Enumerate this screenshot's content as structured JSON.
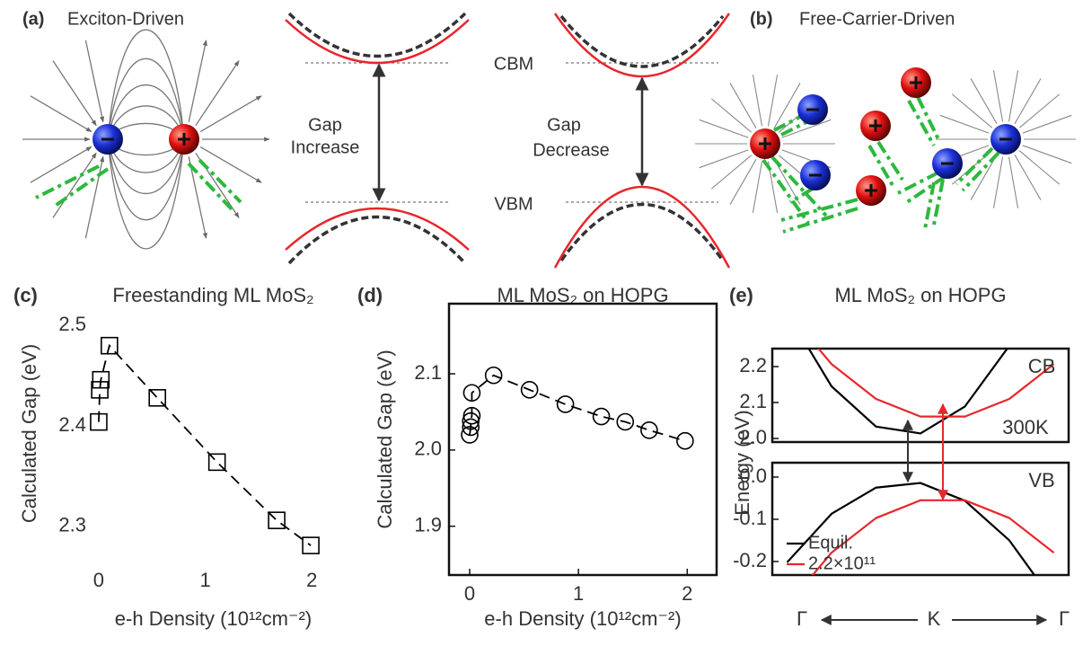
{
  "panel_a": {
    "label": "(a)",
    "title": "Exciton-Driven",
    "gap_text": [
      "Gap",
      "Increase"
    ],
    "cbm": "CBM",
    "vbm": "VBM"
  },
  "panel_b": {
    "label": "(b)",
    "title": "Free-Carrier-Driven",
    "gap_text": [
      "Gap",
      "Decrease"
    ]
  },
  "chart_data": [
    {
      "type": "line",
      "panel_label": "(c)",
      "title": "Freestanding ML MoS₂",
      "xlabel": "e-h Density (10¹²cm⁻²)",
      "ylabel": "Calculated Gap (eV)",
      "x": [
        0,
        0.01,
        0.02,
        0.1,
        0.55,
        1.11,
        1.67,
        1.99
      ],
      "values": [
        2.404,
        2.436,
        2.446,
        2.48,
        2.428,
        2.364,
        2.306,
        2.281
      ],
      "color": "#000000",
      "marker": "square",
      "linestyle": "dashed",
      "frame": false,
      "xlim": [
        -0.05,
        2.2
      ],
      "xticks": [
        0,
        1,
        2
      ],
      "ylim": [
        2.265,
        2.52
      ],
      "yticks": [
        2.3,
        2.4,
        2.5
      ]
    },
    {
      "type": "line",
      "panel_label": "(d)",
      "title": "ML MoS₂ on HOPG",
      "xlabel": "e-h Density (10¹²cm⁻²)",
      "ylabel": "Calculated Gap (eV)",
      "x": [
        0,
        0.01,
        0.01,
        0.02,
        0.02,
        0.22,
        0.55,
        0.88,
        1.21,
        1.43,
        1.65,
        1.98
      ],
      "values": [
        2.02,
        2.03,
        2.038,
        2.045,
        2.075,
        2.098,
        2.079,
        2.06,
        2.044,
        2.037,
        2.026,
        2.012
      ],
      "color": "#000000",
      "marker": "circle",
      "linestyle": "dashed",
      "frame": true,
      "xlim": [
        -0.19,
        2.27
      ],
      "xticks": [
        0,
        1,
        2
      ],
      "ylim": [
        1.836,
        2.192
      ],
      "yticks": [
        1.9,
        {
          "value": 2,
          "label": "2.0"
        },
        2.1
      ]
    },
    {
      "type": "band",
      "panel_label": "(e)",
      "title": "ML MoS₂ on HOPG",
      "ylabel": "Energy (eV)",
      "x_labels": [
        "Γ",
        "K",
        "Γ"
      ],
      "x": [
        -0.9,
        -0.6,
        -0.3,
        0,
        0.3,
        0.6,
        0.9
      ],
      "xlim": [
        -1,
        1
      ],
      "series": [
        {
          "name": "Equil.",
          "color": "#000000"
        },
        {
          "name": "2.2×10¹¹",
          "color": "#e8262b"
        }
      ],
      "panels": [
        {
          "label": "CB",
          "note": "300K",
          "ylim": [
            1.99,
            2.25
          ],
          "yticks": [
            {
              "value": 2,
              "label": "2.0"
            },
            2.1,
            2.2
          ],
          "values": [
            [
              2.35,
              2.145,
              2.033,
              2.014,
              2.089,
              2.258,
              2.52
            ],
            [
              2.353,
              2.207,
              2.11,
              2.061,
              2.061,
              2.11,
              2.207
            ]
          ]
        },
        {
          "label": "VB",
          "ylim": [
            -0.232,
            0.034
          ],
          "yticks": [
            -0.2,
            -0.1,
            {
              "value": 0,
              "label": "0.0"
            }
          ],
          "values": [
            [
              -0.202,
              -0.087,
              -0.025,
              -0.014,
              -0.056,
              -0.15,
              -0.296
            ],
            [
              -0.304,
              -0.179,
              -0.097,
              -0.055,
              -0.055,
              -0.097,
              -0.179
            ]
          ]
        }
      ]
    }
  ]
}
